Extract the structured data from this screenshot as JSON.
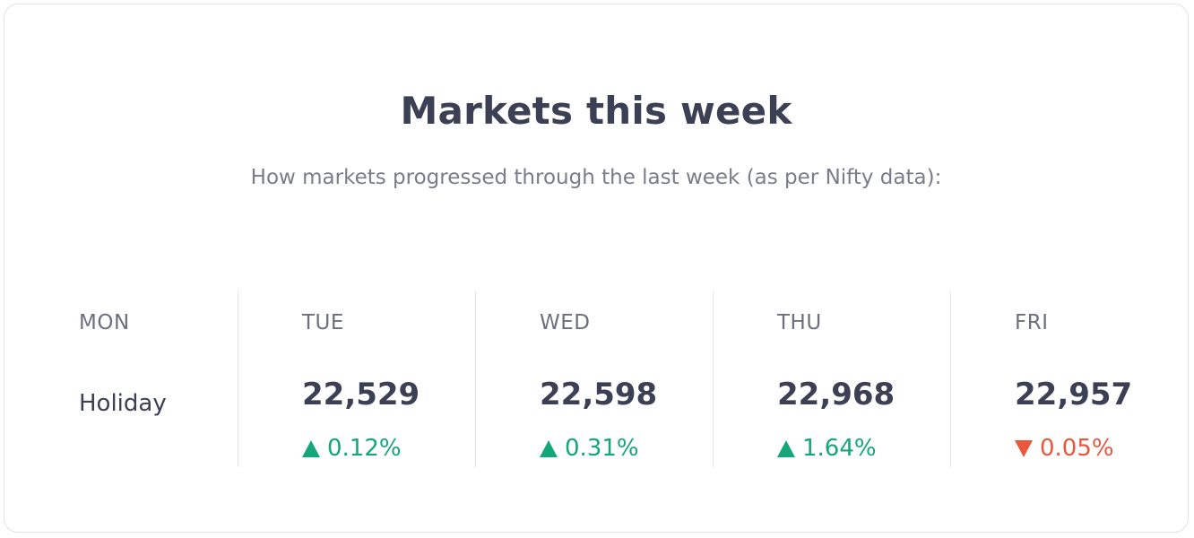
{
  "header": {
    "title": "Markets this week",
    "subtitle": "How markets progressed through the last week (as per Nifty data):"
  },
  "days": [
    {
      "label": "MON",
      "status": "Holiday"
    },
    {
      "label": "TUE",
      "value": "22,529",
      "change": "0.12%",
      "direction": "up"
    },
    {
      "label": "WED",
      "value": "22,598",
      "change": "0.31%",
      "direction": "up"
    },
    {
      "label": "THU",
      "value": "22,968",
      "change": "1.64%",
      "direction": "up"
    },
    {
      "label": "FRI",
      "value": "22,957",
      "change": "0.05%",
      "direction": "down"
    }
  ],
  "colors": {
    "up": "#15a67a",
    "down": "#e9573d",
    "text": "#3c4054",
    "muted": "#7a7c8a",
    "border": "#e3e3e6"
  },
  "icons": {
    "up": "triangle-up-icon",
    "down": "triangle-down-icon"
  }
}
